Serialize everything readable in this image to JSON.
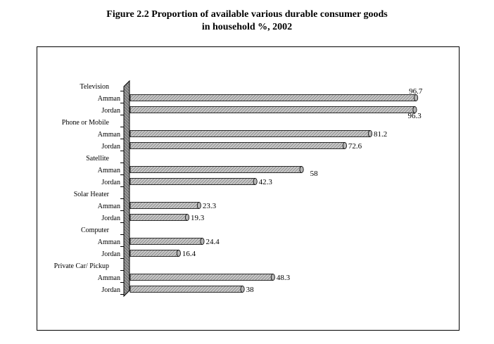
{
  "figure": {
    "title_line1": "Figure 2.2 Proportion of available various durable consumer goods",
    "title_line2": "in household %, 2002"
  },
  "chart_data": {
    "type": "bar",
    "orientation": "horizontal",
    "style": "3d cylinder bars with hatched fill",
    "xlim": [
      0,
      100
    ],
    "grid": false,
    "legend": "none",
    "groups": [
      {
        "name": "Television",
        "bars": [
          {
            "label": "Amman",
            "value": 96.7
          },
          {
            "label": "Jordan",
            "value": 96.3
          }
        ]
      },
      {
        "name": "Phone or Mobile",
        "bars": [
          {
            "label": "Amman",
            "value": 81.2
          },
          {
            "label": "Jordan",
            "value": 72.6
          }
        ]
      },
      {
        "name": "Satellite",
        "bars": [
          {
            "label": "Amman",
            "value": 58
          },
          {
            "label": "Jordan",
            "value": 42.3
          }
        ]
      },
      {
        "name": "Solar Heater",
        "bars": [
          {
            "label": "Amman",
            "value": 23.3
          },
          {
            "label": "Jordan",
            "value": 19.3
          }
        ]
      },
      {
        "name": "Computer",
        "bars": [
          {
            "label": "Amman",
            "value": 24.4
          },
          {
            "label": "Jordan",
            "value": 16.4
          }
        ]
      },
      {
        "name": "Private Car/ Pickup",
        "bars": [
          {
            "label": "Amman",
            "value": 48.3
          },
          {
            "label": "Jordan",
            "value": 38
          }
        ]
      }
    ]
  }
}
